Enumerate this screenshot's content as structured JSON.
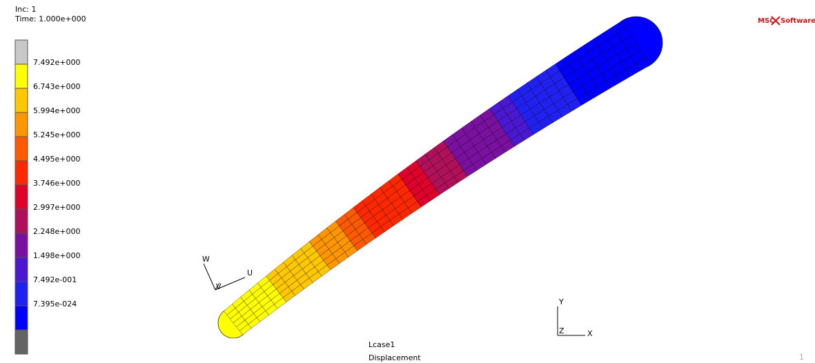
{
  "header": {
    "inc": "Inc:  1",
    "time": "Time:  1.000e+000"
  },
  "logo": {
    "left": "MSC",
    "right": "Software"
  },
  "legend": {
    "colors": [
      "#c8c8c8",
      "#ffff00",
      "#ffc800",
      "#ff9600",
      "#ff5a00",
      "#ff2800",
      "#e0002c",
      "#b0105a",
      "#7a10a0",
      "#4a18d0",
      "#2020f0",
      "#0000ff",
      "#646464"
    ],
    "labels": [
      "7.492e+000",
      "6.743e+000",
      "5.994e+000",
      "5.245e+000",
      "4.495e+000",
      "3.746e+000",
      "2.997e+000",
      "2.248e+000",
      "1.498e+000",
      "7.492e-001",
      "7.395e-024"
    ]
  },
  "triad_left": {
    "w": "W",
    "v": "V",
    "u": "U"
  },
  "triad_right": {
    "y": "Y",
    "z": "Z",
    "x": "X"
  },
  "footer": {
    "case": "Lcase1",
    "quantity": "Displacement",
    "window": "1"
  }
}
